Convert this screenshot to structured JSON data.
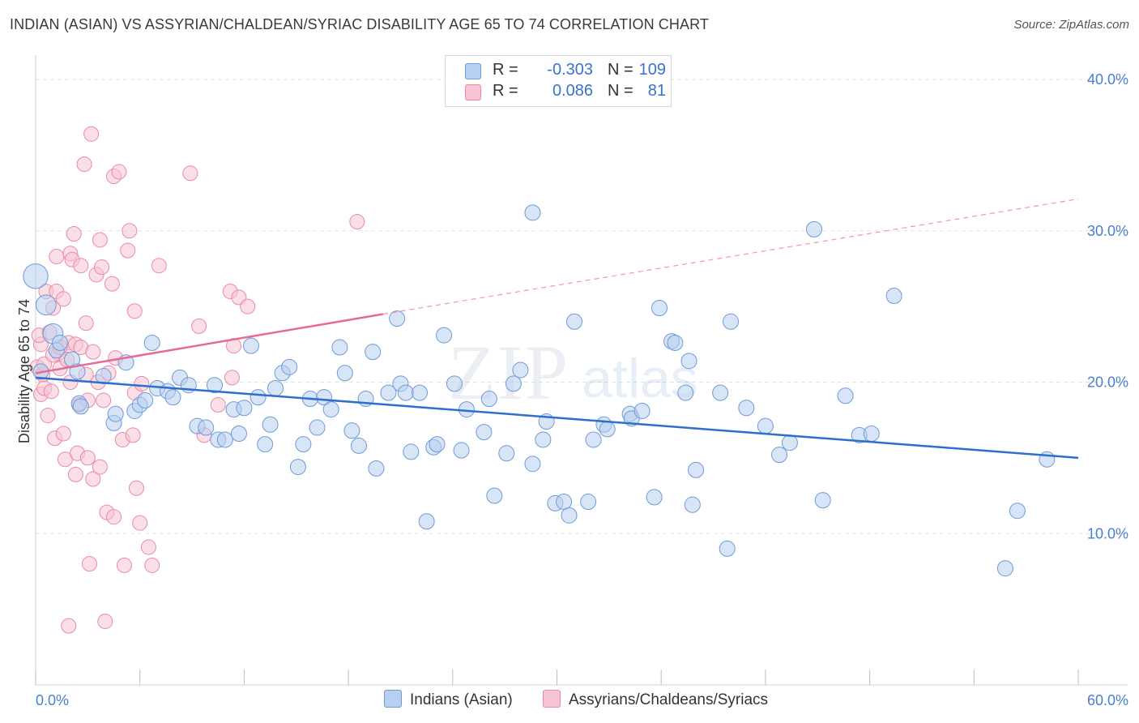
{
  "title": "INDIAN (ASIAN) VS ASSYRIAN/CHALDEAN/SYRIAC DISABILITY AGE 65 TO 74 CORRELATION CHART",
  "source": "Source: ZipAtlas.com",
  "watermark": {
    "zip": "ZIP",
    "atlas": "atlas"
  },
  "colors": {
    "blue_fill": "#b8d0f0",
    "blue_stroke": "#6f9ad8",
    "blue_line": "#2e6fcc",
    "pink_fill": "#f7c4d4",
    "pink_stroke": "#e88aa8",
    "pink_line": "#e86a93",
    "tick_text": "#4a7fd0",
    "grid": "#e2e2e2"
  },
  "legend": {
    "rows": [
      {
        "r_label": "R =",
        "r_value": "-0.303",
        "n_label": "N =",
        "n_value": "109"
      },
      {
        "r_label": "R =",
        "r_value": "0.086",
        "n_label": "N =",
        "n_value": "81"
      }
    ]
  },
  "bottom_legend": {
    "series1": "Indians (Asian)",
    "series2": "Assyrians/Chaldeans/Syriacs"
  },
  "chart_data": {
    "type": "scatter",
    "title": "INDIAN (ASIAN) VS ASSYRIAN/CHALDEAN/SYRIAC DISABILITY AGE 65 TO 74 CORRELATION CHART",
    "xlabel": "",
    "ylabel": "Disability Age 65 to 74",
    "xlim": [
      0,
      60
    ],
    "ylim": [
      0,
      40
    ],
    "x_tick_labels": [
      "0.0%",
      "60.0%"
    ],
    "y_ticks": [
      10,
      20,
      30,
      40
    ],
    "y_tick_labels": [
      "10.0%",
      "20.0%",
      "30.0%",
      "40.0%"
    ],
    "grid": true,
    "legend_position": "top-center",
    "series": [
      {
        "name": "Indians (Asian)",
        "color": "#6f9ad8",
        "trend": {
          "x": [
            0,
            60
          ],
          "y": [
            20.3,
            15.0
          ]
        },
        "points": [
          [
            0.0,
            27.0,
            1.6
          ],
          [
            0.6,
            25.1,
            1.3
          ],
          [
            1.0,
            23.2,
            1.3
          ],
          [
            1.2,
            22.1,
            1.0
          ],
          [
            1.4,
            22.6,
            1.0
          ],
          [
            2.1,
            21.5,
            1.0
          ],
          [
            2.4,
            20.7,
            1.0
          ],
          [
            2.5,
            18.6,
            1.0
          ],
          [
            2.6,
            18.4,
            1.0
          ],
          [
            3.9,
            20.4,
            1.0
          ],
          [
            4.5,
            17.3,
            1.0
          ],
          [
            4.6,
            17.9,
            1.0
          ],
          [
            5.2,
            21.3,
            1.0
          ],
          [
            5.7,
            18.1,
            1.0
          ],
          [
            6.0,
            18.5,
            1.0
          ],
          [
            6.3,
            18.8,
            1.0
          ],
          [
            6.7,
            22.6,
            1.0
          ],
          [
            7.0,
            19.6,
            1.0
          ],
          [
            7.6,
            19.4,
            1.0
          ],
          [
            7.9,
            19.0,
            1.0
          ],
          [
            8.3,
            20.3,
            1.0
          ],
          [
            8.8,
            19.8,
            1.0
          ],
          [
            9.3,
            17.1,
            1.0
          ],
          [
            9.8,
            17.0,
            1.0
          ],
          [
            10.3,
            19.8,
            1.0
          ],
          [
            10.5,
            16.2,
            1.0
          ],
          [
            10.9,
            16.2,
            1.0
          ],
          [
            11.4,
            18.2,
            1.0
          ],
          [
            11.7,
            16.6,
            1.0
          ],
          [
            12.0,
            18.3,
            1.0
          ],
          [
            12.4,
            22.4,
            1.0
          ],
          [
            12.8,
            19.0,
            1.0
          ],
          [
            13.2,
            15.9,
            1.0
          ],
          [
            13.5,
            17.2,
            1.0
          ],
          [
            13.8,
            19.6,
            1.0
          ],
          [
            14.2,
            20.6,
            1.0
          ],
          [
            14.6,
            21.0,
            1.0
          ],
          [
            15.1,
            14.4,
            1.0
          ],
          [
            15.4,
            15.9,
            1.0
          ],
          [
            15.8,
            18.9,
            1.0
          ],
          [
            16.2,
            17.0,
            1.0
          ],
          [
            16.6,
            19.0,
            1.0
          ],
          [
            17.0,
            18.2,
            1.0
          ],
          [
            17.5,
            22.3,
            1.0
          ],
          [
            17.8,
            20.6,
            1.0
          ],
          [
            18.2,
            16.8,
            1.0
          ],
          [
            18.6,
            15.8,
            1.0
          ],
          [
            19.0,
            18.9,
            1.0
          ],
          [
            19.4,
            22.0,
            1.0
          ],
          [
            19.6,
            14.3,
            1.0
          ],
          [
            20.3,
            19.3,
            1.0
          ],
          [
            20.8,
            24.2,
            1.0
          ],
          [
            21.0,
            19.9,
            1.0
          ],
          [
            21.3,
            19.3,
            1.0
          ],
          [
            21.6,
            15.4,
            1.0
          ],
          [
            22.1,
            19.3,
            1.0
          ],
          [
            22.5,
            10.8,
            1.0
          ],
          [
            22.9,
            15.7,
            1.0
          ],
          [
            23.1,
            15.9,
            1.0
          ],
          [
            23.5,
            23.1,
            1.0
          ],
          [
            24.1,
            19.9,
            1.0
          ],
          [
            24.5,
            15.5,
            1.0
          ],
          [
            24.8,
            18.2,
            1.0
          ],
          [
            25.8,
            16.7,
            1.0
          ],
          [
            26.1,
            18.9,
            1.0
          ],
          [
            26.4,
            12.5,
            1.0
          ],
          [
            27.1,
            15.3,
            1.0
          ],
          [
            27.5,
            19.9,
            1.0
          ],
          [
            27.9,
            20.8,
            1.0
          ],
          [
            28.6,
            31.2,
            1.0
          ],
          [
            28.6,
            14.6,
            1.0
          ],
          [
            29.2,
            16.2,
            1.0
          ],
          [
            29.4,
            17.4,
            1.0
          ],
          [
            29.9,
            12.0,
            1.0
          ],
          [
            30.4,
            12.1,
            1.0
          ],
          [
            30.7,
            11.2,
            1.0
          ],
          [
            31.0,
            24.0,
            1.0
          ],
          [
            31.8,
            12.1,
            1.0
          ],
          [
            32.1,
            16.2,
            1.0
          ],
          [
            32.7,
            17.2,
            1.0
          ],
          [
            32.9,
            16.9,
            1.0
          ],
          [
            34.2,
            17.9,
            1.0
          ],
          [
            34.3,
            17.6,
            1.0
          ],
          [
            34.9,
            18.1,
            1.0
          ],
          [
            35.6,
            12.4,
            1.0
          ],
          [
            35.9,
            24.9,
            1.0
          ],
          [
            36.6,
            22.7,
            1.0
          ],
          [
            36.8,
            22.6,
            1.0
          ],
          [
            37.4,
            19.3,
            1.0
          ],
          [
            37.6,
            21.4,
            1.0
          ],
          [
            37.8,
            11.9,
            1.0
          ],
          [
            38.0,
            14.2,
            1.0
          ],
          [
            39.4,
            19.3,
            1.0
          ],
          [
            39.8,
            9.0,
            1.0
          ],
          [
            40.0,
            24.0,
            1.0
          ],
          [
            40.9,
            18.3,
            1.0
          ],
          [
            42.0,
            17.1,
            1.0
          ],
          [
            42.8,
            15.2,
            1.0
          ],
          [
            43.4,
            16.0,
            1.0
          ],
          [
            44.8,
            30.1,
            1.0
          ],
          [
            45.3,
            12.2,
            1.0
          ],
          [
            46.6,
            19.1,
            1.0
          ],
          [
            47.4,
            16.5,
            1.0
          ],
          [
            48.1,
            16.6,
            1.0
          ],
          [
            49.4,
            25.7,
            1.0
          ],
          [
            55.8,
            7.7,
            1.0
          ],
          [
            56.5,
            11.5,
            1.0
          ],
          [
            58.2,
            14.9,
            1.0
          ],
          [
            0.3,
            20.7,
            1.0
          ]
        ]
      },
      {
        "name": "Assyrians/Chaldeans/Syriacs",
        "color": "#e88aa8",
        "trend_solid": {
          "x": [
            0,
            20
          ],
          "y": [
            20.6,
            24.5
          ]
        },
        "trend_dashed": {
          "x": [
            20,
            60
          ],
          "y": [
            24.5,
            32.1
          ]
        },
        "points": [
          [
            0.1,
            21.0,
            1.0
          ],
          [
            0.3,
            22.5,
            1.0
          ],
          [
            0.3,
            19.2,
            1.0
          ],
          [
            0.4,
            20.5,
            1.0
          ],
          [
            0.5,
            19.6,
            1.0
          ],
          [
            0.6,
            26.0,
            1.0
          ],
          [
            0.7,
            17.8,
            1.0
          ],
          [
            0.9,
            19.4,
            1.0
          ],
          [
            1.0,
            24.9,
            1.0
          ],
          [
            1.1,
            16.3,
            1.0
          ],
          [
            1.2,
            28.3,
            1.0
          ],
          [
            1.2,
            26.0,
            1.0
          ],
          [
            1.3,
            21.9,
            1.0
          ],
          [
            1.4,
            20.9,
            1.0
          ],
          [
            1.6,
            25.5,
            1.0
          ],
          [
            1.6,
            16.6,
            1.0
          ],
          [
            1.7,
            14.9,
            1.0
          ],
          [
            1.8,
            21.5,
            1.0
          ],
          [
            1.9,
            22.6,
            1.0
          ],
          [
            1.9,
            3.9,
            1.0
          ],
          [
            2.0,
            20.0,
            1.0
          ],
          [
            2.0,
            28.5,
            1.0
          ],
          [
            2.1,
            28.1,
            1.0
          ],
          [
            2.2,
            29.8,
            1.0
          ],
          [
            2.3,
            13.9,
            1.0
          ],
          [
            2.3,
            22.5,
            1.0
          ],
          [
            2.4,
            15.3,
            1.0
          ],
          [
            2.5,
            18.5,
            1.0
          ],
          [
            2.6,
            22.3,
            1.0
          ],
          [
            2.6,
            27.7,
            1.0
          ],
          [
            2.8,
            34.4,
            1.0
          ],
          [
            2.9,
            23.9,
            1.0
          ],
          [
            2.9,
            20.5,
            1.0
          ],
          [
            3.0,
            18.8,
            1.0
          ],
          [
            3.0,
            15.0,
            1.0
          ],
          [
            3.1,
            8.0,
            1.0
          ],
          [
            3.2,
            36.4,
            1.0
          ],
          [
            3.3,
            22.0,
            1.0
          ],
          [
            3.3,
            13.6,
            1.0
          ],
          [
            3.5,
            27.1,
            1.0
          ],
          [
            3.6,
            20.0,
            1.0
          ],
          [
            3.7,
            14.4,
            1.0
          ],
          [
            3.7,
            29.4,
            1.0
          ],
          [
            3.9,
            18.8,
            1.0
          ],
          [
            3.8,
            27.6,
            1.0
          ],
          [
            4.0,
            4.2,
            1.0
          ],
          [
            4.1,
            11.4,
            1.0
          ],
          [
            4.2,
            20.6,
            1.0
          ],
          [
            4.4,
            26.5,
            1.0
          ],
          [
            4.5,
            33.6,
            1.0
          ],
          [
            4.5,
            11.1,
            1.0
          ],
          [
            4.6,
            21.6,
            1.0
          ],
          [
            4.8,
            33.9,
            1.0
          ],
          [
            5.0,
            16.2,
            1.0
          ],
          [
            5.1,
            7.9,
            1.0
          ],
          [
            5.3,
            28.7,
            1.0
          ],
          [
            5.4,
            30.0,
            1.0
          ],
          [
            5.6,
            16.5,
            1.0
          ],
          [
            5.7,
            19.3,
            1.0
          ],
          [
            5.7,
            24.7,
            1.0
          ],
          [
            5.8,
            13.0,
            1.0
          ],
          [
            6.0,
            10.7,
            1.0
          ],
          [
            6.1,
            19.9,
            1.0
          ],
          [
            6.5,
            9.1,
            1.0
          ],
          [
            6.7,
            7.9,
            1.0
          ],
          [
            7.1,
            27.7,
            1.0
          ],
          [
            8.9,
            33.8,
            1.0
          ],
          [
            9.4,
            23.7,
            1.0
          ],
          [
            9.7,
            16.5,
            1.0
          ],
          [
            10.5,
            18.5,
            1.0
          ],
          [
            11.2,
            26.0,
            1.0
          ],
          [
            11.3,
            20.3,
            1.0
          ],
          [
            11.4,
            22.4,
            1.0
          ],
          [
            11.7,
            25.6,
            1.0
          ],
          [
            12.2,
            25.0,
            1.0
          ],
          [
            18.5,
            30.6,
            1.0
          ],
          [
            0.2,
            23.1,
            1.0
          ],
          [
            0.5,
            21.2,
            1.0
          ],
          [
            1.0,
            21.8,
            1.0
          ],
          [
            1.4,
            22.3,
            1.0
          ],
          [
            0.8,
            23.3,
            1.0
          ]
        ]
      }
    ]
  }
}
